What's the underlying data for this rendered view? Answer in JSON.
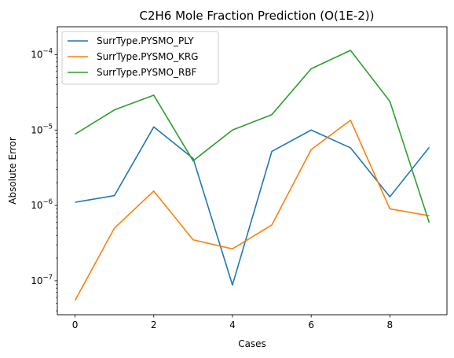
{
  "chart_data": {
    "type": "line",
    "title": "C2H6 Mole Fraction Prediction (O(1E-2))",
    "xlabel": "Cases",
    "ylabel": "Absolute Error",
    "yscale": "log",
    "xlim": [
      -0.45,
      9.45
    ],
    "ylim_log10": [
      -7.45,
      -3.63
    ],
    "x_ticks": [
      0,
      2,
      4,
      6,
      8
    ],
    "x_tick_labels": [
      "0",
      "2",
      "4",
      "6",
      "8"
    ],
    "y_ticks": [
      {
        "exp": -7,
        "base": "10",
        "sup": "−7"
      },
      {
        "exp": -6,
        "base": "10",
        "sup": "−6"
      },
      {
        "exp": -5,
        "base": "10",
        "sup": "−5"
      },
      {
        "exp": -4,
        "base": "10",
        "sup": "−4"
      }
    ],
    "legend_position": "upper-left",
    "x": [
      0,
      1,
      2,
      3,
      4,
      5,
      6,
      7,
      8,
      9
    ],
    "series": [
      {
        "name": "SurrType.PYSMO_PLY",
        "color": "#1f77b4",
        "values": [
          1.1e-06,
          1.35e-06,
          1.1e-05,
          4.2e-06,
          8.8e-08,
          5.2e-06,
          1e-05,
          5.8e-06,
          1.3e-06,
          5.9e-06
        ]
      },
      {
        "name": "SurrType.PYSMO_KRG",
        "color": "#ff7f0e",
        "values": [
          5.5e-08,
          5e-07,
          1.55e-06,
          3.5e-07,
          2.65e-07,
          5.5e-07,
          5.5e-06,
          1.35e-05,
          9e-07,
          7.3e-07
        ]
      },
      {
        "name": "SurrType.PYSMO_RBF",
        "color": "#2ca02c",
        "values": [
          8.8e-06,
          1.85e-05,
          2.9e-05,
          3.9e-06,
          1e-05,
          1.6e-05,
          6.5e-05,
          0.000114,
          2.4e-05,
          5.9e-07
        ]
      }
    ]
  }
}
